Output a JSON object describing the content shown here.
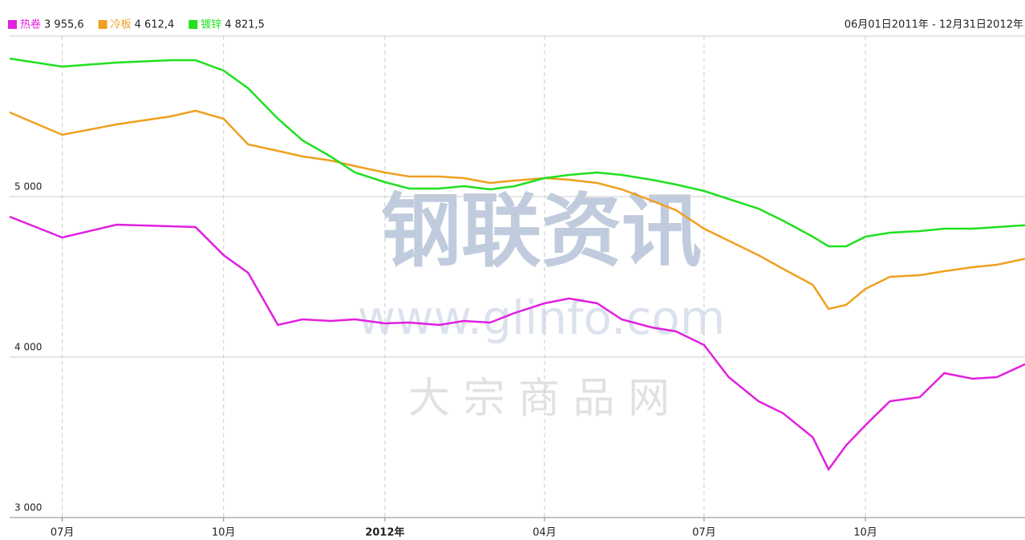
{
  "chart_data": {
    "type": "line",
    "date_range": "06月01日2011年 - 12月31日2012年",
    "watermark": {
      "brand": "钢联资讯",
      "url": "www.glinfo.com",
      "slogan": "大 宗 商 品 网"
    },
    "x": [
      "2011-06-01",
      "2011-07-01",
      "2011-08-01",
      "2011-09-01",
      "2011-09-15",
      "2011-10-01",
      "2011-10-15",
      "2011-11-01",
      "2011-11-15",
      "2011-12-01",
      "2011-12-15",
      "2012-01-01",
      "2012-01-15",
      "2012-02-01",
      "2012-02-15",
      "2012-03-01",
      "2012-03-15",
      "2012-04-01",
      "2012-04-15",
      "2012-05-01",
      "2012-05-15",
      "2012-06-01",
      "2012-06-15",
      "2012-07-01",
      "2012-07-15",
      "2012-08-01",
      "2012-08-15",
      "2012-09-01",
      "2012-09-10",
      "2012-09-20",
      "2012-10-01",
      "2012-10-15",
      "2012-11-01",
      "2012-11-15",
      "2012-12-01",
      "2012-12-15",
      "2012-12-31"
    ],
    "xlim": [
      "2011-06-01",
      "2012-12-31"
    ],
    "xticks": [
      {
        "value": "2011-07-01",
        "label": "07月"
      },
      {
        "value": "2011-10-01",
        "label": "10月"
      },
      {
        "value": "2012-01-01",
        "label": "2012年"
      },
      {
        "value": "2012-04-01",
        "label": "04月"
      },
      {
        "value": "2012-07-01",
        "label": "07月"
      },
      {
        "value": "2012-10-01",
        "label": "10月"
      }
    ],
    "ylim": [
      3000,
      6000
    ],
    "yticks": [
      {
        "value": 3000,
        "label": "3 000"
      },
      {
        "value": 4000,
        "label": "4 000"
      },
      {
        "value": 5000,
        "label": "5 000"
      }
    ],
    "grid": true,
    "series": [
      {
        "name": "热卷",
        "color": "#e020e0",
        "last_value_label": "3 955,6",
        "values": [
          4875,
          4745,
          4825,
          4815,
          4810,
          4635,
          4525,
          4200,
          4235,
          4225,
          4235,
          4210,
          4215,
          4200,
          4225,
          4215,
          4275,
          4335,
          4365,
          4335,
          4235,
          4185,
          4160,
          4075,
          3875,
          3725,
          3650,
          3500,
          3300,
          3450,
          3575,
          3725,
          3750,
          3900,
          3865,
          3875,
          3955.6
        ]
      },
      {
        "name": "冷板",
        "color": "#f0a020",
        "last_value_label": "4 612,4",
        "values": [
          5525,
          5385,
          5450,
          5500,
          5535,
          5485,
          5325,
          5285,
          5250,
          5225,
          5190,
          5150,
          5125,
          5125,
          5115,
          5085,
          5100,
          5115,
          5105,
          5085,
          5045,
          4975,
          4915,
          4800,
          4725,
          4635,
          4550,
          4450,
          4300,
          4325,
          4425,
          4500,
          4510,
          4535,
          4560,
          4575,
          4612.4
        ]
      },
      {
        "name": "镀锌",
        "color": "#20e020",
        "last_value_label": "4 821,5",
        "values": [
          5860,
          5810,
          5835,
          5850,
          5850,
          5785,
          5675,
          5485,
          5350,
          5250,
          5150,
          5090,
          5050,
          5050,
          5065,
          5045,
          5065,
          5115,
          5135,
          5150,
          5135,
          5105,
          5075,
          5035,
          4985,
          4925,
          4850,
          4750,
          4690,
          4690,
          4750,
          4775,
          4785,
          4800,
          4800,
          4810,
          4821.5
        ]
      }
    ]
  }
}
